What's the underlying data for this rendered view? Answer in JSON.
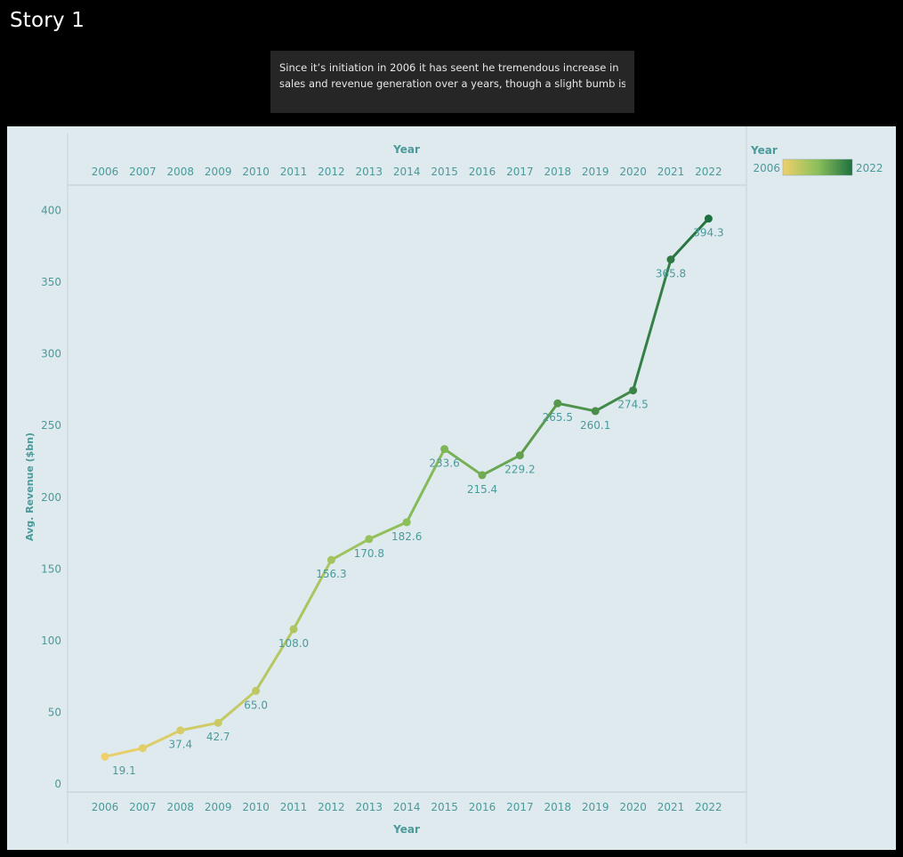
{
  "story": {
    "title": "Story 1",
    "caption_lines": [
      "Since it’s initiation in 2006 it has seent he tremendous increase in",
      "sales and revenue generation over a years, though a slight bumb is .."
    ]
  },
  "legend": {
    "title": "Year",
    "min_label": "2006",
    "max_label": "2022",
    "color_start": "#eed06b",
    "color_mid": "#8bbf5a",
    "color_end": "#1f7040"
  },
  "colors": {
    "axis_text": "#4a9a9a",
    "panel_bg": "#dfeaef"
  },
  "chart_data": {
    "type": "line",
    "x_axis_title": "Year",
    "ylabel": "Avg. Revenue ($bn)",
    "categories": [
      "2006",
      "2007",
      "2008",
      "2009",
      "2010",
      "2011",
      "2012",
      "2013",
      "2014",
      "2015",
      "2016",
      "2017",
      "2018",
      "2019",
      "2020",
      "2021",
      "2022"
    ],
    "values": [
      19.1,
      25.0,
      37.4,
      42.7,
      65.0,
      108.0,
      156.3,
      170.8,
      182.6,
      233.6,
      215.4,
      229.2,
      265.5,
      260.1,
      274.5,
      365.8,
      394.3
    ],
    "data_labels": [
      "19.1",
      "",
      "37.4",
      "42.7",
      "65.0",
      "108.0",
      "156.3",
      "170.8",
      "182.6",
      "233.6",
      "215.4",
      "229.2",
      "265.5",
      "260.1",
      "274.5",
      "365.8",
      "394.3"
    ],
    "y_ticks": [
      0,
      50,
      100,
      150,
      200,
      250,
      300,
      350,
      400
    ],
    "ylim": [
      0,
      400
    ],
    "grid": false,
    "legend_position": "top-right"
  }
}
